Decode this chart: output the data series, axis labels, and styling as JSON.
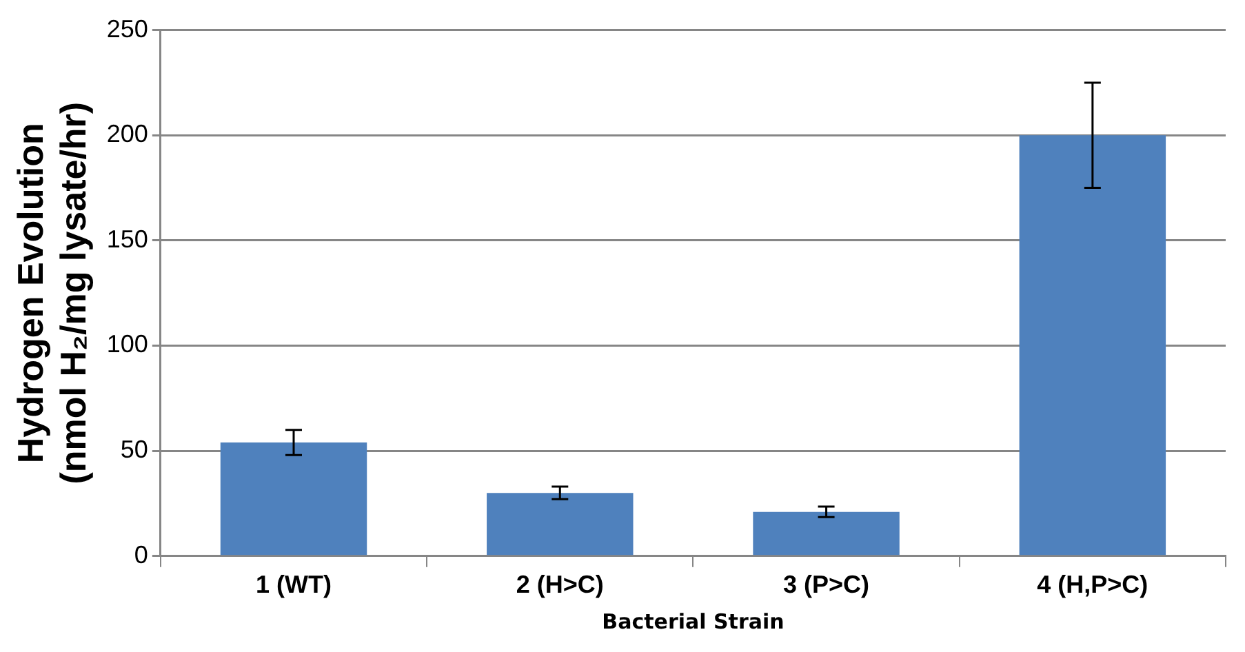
{
  "chart_data": {
    "type": "bar",
    "xlabel": "Bacterial Strain",
    "ylabel": "Hydrogen Evolution\n(nmol H₂/mg lysate/hr)",
    "categories": [
      "1 (WT)",
      "2 (H>C)",
      "3 (P>C)",
      "4 (H,P>C)"
    ],
    "values": [
      54,
      30,
      21,
      200
    ],
    "errors": [
      6,
      3,
      2.5,
      25
    ],
    "color": "#4f81bd",
    "ylim": [
      0,
      250
    ],
    "yticks": [
      0,
      50,
      100,
      150,
      200,
      250
    ],
    "grid": "y",
    "legend": false
  }
}
